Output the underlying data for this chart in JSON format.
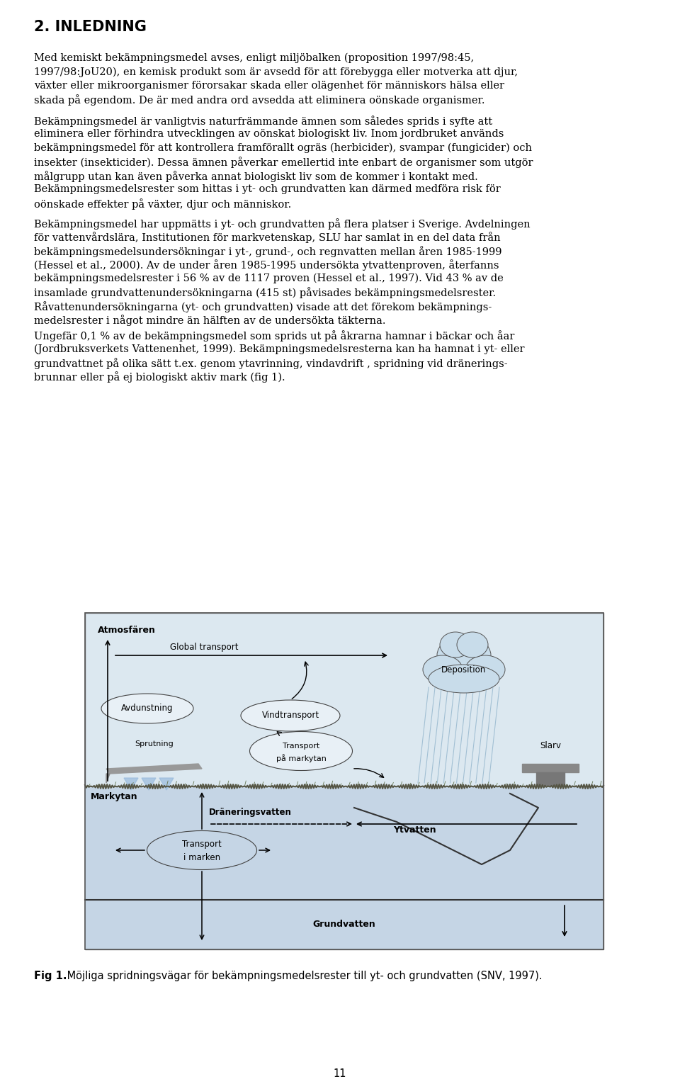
{
  "title": "2. INLEDNING",
  "page_number": "11",
  "para1_lines": [
    "Med kemiskt bekämpningsmedel avses, enligt miljöbalken (proposition 1997/98:45,",
    "1997/98:JoU20), en kemisk produkt som är avsedd för att förebygga eller motverka att djur,",
    "växter eller mikroorganismer förorsakar skada eller olägenhet för människors hälsa eller",
    "skada på egendom. De är med andra ord avsedda att eliminera oönskade organismer."
  ],
  "para2_lines": [
    "Bekämpningsmedel är vanligtvis naturfrämmande ämnen som således sprids i syfte att",
    "eliminera eller förhindra utvecklingen av oönskat biologiskt liv. Inom jordbruket används",
    "bekämpningsmedel för att kontrollera framförallt ogräs (herbicider), svampar (fungicider) och",
    "insekter (insekticider). Dessa ämnen påverkar emellertid inte enbart de organismer som utgör",
    "målgrupp utan kan även påverka annat biologiskt liv som de kommer i kontakt med.",
    "Bekämpningsmedelsrester som hittas i yt- och grundvatten kan därmed medföra risk för",
    "oönskade effekter på växter, djur och människor."
  ],
  "para3_lines": [
    "Bekämpningsmedel har uppmätts i yt- och grundvatten på flera platser i Sverige. Avdelningen",
    "för vattenvårdslära, Institutionen för markvetenskap, SLU har samlat in en del data från",
    "bekämpningsmedelsundersökningar i yt-, grund-, och regnvatten mellan åren 1985-1999",
    "(Hessel et al., 2000). Av de under åren 1985-1995 undersökta ytvattenproven, återfanns",
    "bekämpningsmedelsrester i 56 % av de 1117 proven (Hessel et al., 1997). Vid 43 % av de",
    "insamlade grundvattenundersökningarna (415 st) påvisades bekämpningsmedelsrester.",
    "Råvattenundersökningarna (yt- och grundvatten) visade att det förekom bekämpnings-",
    "medelsrester i något mindre än hälften av de undersökta täkterna."
  ],
  "para4_lines": [
    "Ungefär 0,1 % av de bekämpningsmedel som sprids ut på åkrarna hamnar i bäckar och åar",
    "(Jordbruksverkets Vattenenhet, 1999). Bekämpningsmedelsresterna kan ha hamnat i yt- eller",
    "grundvattnet på olika sätt t.ex. genom ytavrinning, vindavdrift , spridning vid dränerings-",
    "brunnar eller på ej biologiskt aktiv mark (fig 1)."
  ],
  "fig_caption_bold": "Fig 1.",
  "fig_caption_rest": " Möjliga spridningsvägar för bekämpningsmedelsrester till yt- och grundvatten (SNV, 1997).",
  "background_color": "#ffffff",
  "text_color": "#000000"
}
